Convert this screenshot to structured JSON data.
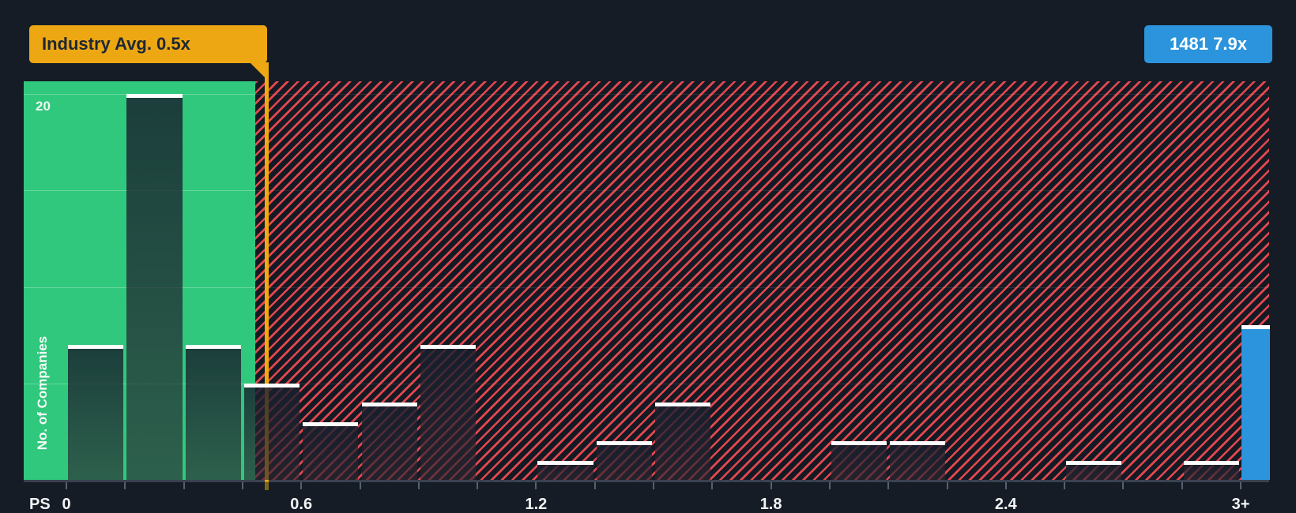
{
  "tooltip": {
    "label": "Industry Avg. 0.5x"
  },
  "badge": {
    "label": "1481 7.9x"
  },
  "colors": {
    "background": "#161c26",
    "below_average_zone": "#2fc87c",
    "above_average_hatch": "#ee4a51",
    "industry_avg_line": "#eca713",
    "highlight_bar": "#2b94dc",
    "bar_cap": "#ffffff"
  },
  "chart_data": {
    "type": "bar",
    "title": "",
    "xlabel": "PS",
    "ylabel": "No. of Companies",
    "x_axis_prefix": "PS",
    "x_tick_labels": [
      "0",
      "0.6",
      "1.2",
      "1.8",
      "2.4",
      "3+"
    ],
    "y_gridlines": [
      5,
      10,
      15,
      20
    ],
    "y_gridline_label": "20",
    "ylim": [
      0,
      20.7
    ],
    "x_range": [
      0,
      3
    ],
    "bin_width": 0.15,
    "industry_avg": 0.5,
    "industry_avg_label": "Industry Avg. 0.5x",
    "legend_position": "none",
    "grid": "horizontal",
    "bins": [
      {
        "x0": 0.0,
        "x1": 0.15,
        "count": 7
      },
      {
        "x0": 0.15,
        "x1": 0.3,
        "count": 20
      },
      {
        "x0": 0.3,
        "x1": 0.45,
        "count": 7
      },
      {
        "x0": 0.45,
        "x1": 0.6,
        "count": 5
      },
      {
        "x0": 0.6,
        "x1": 0.75,
        "count": 3
      },
      {
        "x0": 0.75,
        "x1": 0.9,
        "count": 4
      },
      {
        "x0": 0.9,
        "x1": 1.05,
        "count": 7
      },
      {
        "x0": 1.05,
        "x1": 1.2,
        "count": 0
      },
      {
        "x0": 1.2,
        "x1": 1.35,
        "count": 1
      },
      {
        "x0": 1.35,
        "x1": 1.5,
        "count": 2
      },
      {
        "x0": 1.5,
        "x1": 1.65,
        "count": 4
      },
      {
        "x0": 1.65,
        "x1": 1.8,
        "count": 0
      },
      {
        "x0": 1.8,
        "x1": 1.95,
        "count": 0
      },
      {
        "x0": 1.95,
        "x1": 2.1,
        "count": 2
      },
      {
        "x0": 2.1,
        "x1": 2.25,
        "count": 2
      },
      {
        "x0": 2.25,
        "x1": 2.4,
        "count": 0
      },
      {
        "x0": 2.4,
        "x1": 2.55,
        "count": 0
      },
      {
        "x0": 2.55,
        "x1": 2.7,
        "count": 1
      },
      {
        "x0": 2.7,
        "x1": 2.85,
        "count": 0
      },
      {
        "x0": 2.85,
        "x1": 3.0,
        "count": 1
      }
    ],
    "highlight_bin": {
      "label": "3+",
      "count": 8,
      "badge": "1481 7.9x"
    }
  }
}
